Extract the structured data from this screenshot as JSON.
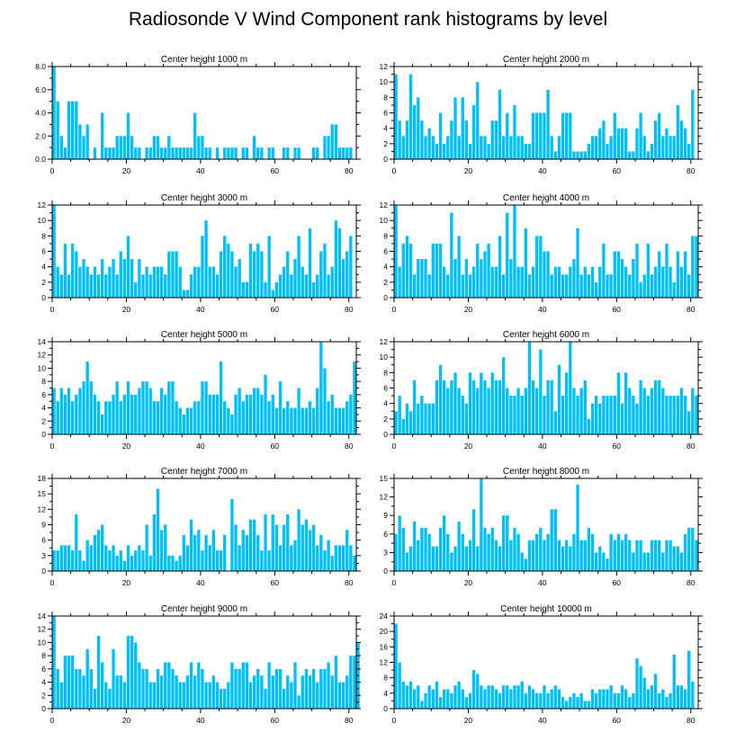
{
  "title": "Radiosonde V Wind Component rank histograms by level",
  "chart_data": [
    {
      "type": "bar",
      "title": "Center height 1000 m",
      "xlim": [
        0,
        82
      ],
      "ylim": [
        0,
        8
      ],
      "xticks": [
        0,
        20,
        40,
        60,
        80
      ],
      "xtick_labels": [
        "0",
        "20",
        "40",
        "60",
        "80"
      ],
      "yticks": [
        0,
        2,
        4,
        6,
        8
      ],
      "ytick_labels": [
        "0.0",
        "2.0",
        "4.0",
        "6.0",
        "8.0"
      ],
      "bar_color": "#00bfff",
      "values": [
        8,
        5,
        2,
        1,
        5,
        5,
        5,
        3,
        2,
        3,
        0,
        1,
        0,
        4,
        1,
        1,
        1,
        2,
        2,
        2,
        4,
        2,
        1,
        1,
        0,
        1,
        1,
        2,
        2,
        1,
        1,
        2,
        1,
        1,
        1,
        1,
        1,
        1,
        4,
        2,
        2,
        1,
        1,
        0,
        1,
        0,
        1,
        1,
        1,
        1,
        0,
        1,
        1,
        0,
        2,
        1,
        1,
        0,
        1,
        1,
        0,
        0,
        1,
        1,
        0,
        1,
        1,
        0,
        0,
        0,
        1,
        1,
        0,
        2,
        2,
        3,
        3,
        1,
        1,
        1,
        1
      ]
    },
    {
      "type": "bar",
      "title": "Center height 2000 m",
      "xlim": [
        0,
        82
      ],
      "ylim": [
        0,
        12
      ],
      "xticks": [
        0,
        20,
        40,
        60,
        80
      ],
      "xtick_labels": [
        "0",
        "20",
        "40",
        "60",
        "80"
      ],
      "yticks": [
        0,
        2,
        4,
        6,
        8,
        10,
        12
      ],
      "ytick_labels": [
        "0",
        "2",
        "4",
        "6",
        "8",
        "10",
        "12"
      ],
      "bar_color": "#00bfff",
      "values": [
        11,
        5,
        3,
        5,
        11,
        7,
        8,
        5,
        3,
        4,
        3,
        2,
        6,
        2,
        3,
        5,
        8,
        3,
        8,
        5,
        2,
        7,
        10,
        3,
        3,
        2,
        5,
        5,
        9,
        3,
        6,
        3,
        7,
        3,
        3,
        2,
        2,
        6,
        6,
        6,
        6,
        9,
        3,
        1,
        3,
        6,
        6,
        6,
        1,
        1,
        1,
        1,
        2,
        3,
        3,
        4,
        5,
        2,
        3,
        6,
        4,
        4,
        4,
        1,
        1,
        4,
        6,
        3,
        1,
        2,
        5,
        6,
        3,
        4,
        3,
        3,
        7,
        5,
        4,
        2,
        9
      ]
    },
    {
      "type": "bar",
      "title": "Center height 3000 m",
      "xlim": [
        0,
        82
      ],
      "ylim": [
        0,
        12
      ],
      "xticks": [
        0,
        20,
        40,
        60,
        80
      ],
      "xtick_labels": [
        "0",
        "20",
        "40",
        "60",
        "80"
      ],
      "yticks": [
        0,
        2,
        4,
        6,
        8,
        10,
        12
      ],
      "ytick_labels": [
        "0",
        "2",
        "4",
        "6",
        "8",
        "10",
        "12"
      ],
      "bar_color": "#00bfff",
      "values": [
        12,
        4,
        3,
        7,
        3,
        7,
        6,
        4,
        5,
        4,
        3,
        4,
        3,
        5,
        3,
        4,
        5,
        3,
        6,
        5,
        8,
        5,
        2,
        5,
        3,
        4,
        3,
        4,
        4,
        4,
        3,
        6,
        6,
        6,
        4,
        1,
        1,
        3,
        4,
        4,
        8,
        10,
        4,
        4,
        3,
        6,
        8,
        7,
        6,
        4,
        5,
        2,
        2,
        7,
        6,
        7,
        6,
        2,
        8,
        1,
        2,
        3,
        4,
        6,
        3,
        5,
        8,
        4,
        3,
        9,
        2,
        3,
        6,
        7,
        3,
        4,
        10,
        9,
        5,
        6,
        8
      ]
    },
    {
      "type": "bar",
      "title": "Center height 4000 m",
      "xlim": [
        0,
        82
      ],
      "ylim": [
        0,
        12
      ],
      "xticks": [
        0,
        20,
        40,
        60,
        80
      ],
      "xtick_labels": [
        "0",
        "20",
        "40",
        "60",
        "80"
      ],
      "yticks": [
        0,
        2,
        4,
        6,
        8,
        10,
        12
      ],
      "ytick_labels": [
        "0",
        "2",
        "4",
        "6",
        "8",
        "10",
        "12"
      ],
      "bar_color": "#00bfff",
      "values": [
        12,
        4,
        7,
        8,
        7,
        3,
        5,
        5,
        5,
        3,
        7,
        7,
        7,
        4,
        3,
        11,
        5,
        8,
        3,
        5,
        3,
        4,
        7,
        5,
        6,
        7,
        4,
        4,
        8,
        3,
        11,
        5,
        12,
        4,
        4,
        9,
        3,
        4,
        8,
        8,
        6,
        6,
        3,
        4,
        4,
        3,
        3,
        4,
        5,
        9,
        3,
        4,
        3,
        4,
        2,
        4,
        7,
        3,
        3,
        6,
        6,
        5,
        4,
        3,
        5,
        7,
        2,
        3,
        7,
        3,
        4,
        6,
        4,
        7,
        4,
        2,
        6,
        4,
        6,
        3,
        8,
        8
      ]
    },
    {
      "type": "bar",
      "title": "Center height 5000 m",
      "xlim": [
        0,
        82
      ],
      "ylim": [
        0,
        14
      ],
      "xticks": [
        0,
        20,
        40,
        60,
        80
      ],
      "xtick_labels": [
        "0",
        "20",
        "40",
        "60",
        "80"
      ],
      "yticks": [
        0,
        2,
        4,
        6,
        8,
        10,
        12,
        14
      ],
      "ytick_labels": [
        "0",
        "2",
        "4",
        "6",
        "8",
        "10",
        "12",
        "14"
      ],
      "bar_color": "#00bfff",
      "values": [
        7,
        5,
        7,
        6,
        7,
        5,
        6,
        7,
        8,
        11,
        8,
        6,
        5,
        3,
        5,
        5,
        6,
        8,
        5,
        6,
        8,
        6,
        6,
        7,
        8,
        8,
        7,
        5,
        5,
        7,
        6,
        8,
        8,
        5,
        4,
        3,
        4,
        4,
        5,
        5,
        8,
        8,
        6,
        6,
        6,
        11,
        5,
        4,
        3,
        6,
        7,
        5,
        6,
        6,
        7,
        7,
        6,
        9,
        5,
        6,
        4,
        8,
        4,
        5,
        4,
        4,
        7,
        4,
        4,
        5,
        4,
        7,
        14,
        10,
        5,
        6,
        4,
        4,
        4,
        5,
        6,
        11
      ]
    },
    {
      "type": "bar",
      "title": "Center height 6000 m",
      "xlim": [
        0,
        82
      ],
      "ylim": [
        0,
        12
      ],
      "xticks": [
        0,
        20,
        40,
        60,
        80
      ],
      "xtick_labels": [
        "0",
        "20",
        "40",
        "60",
        "80"
      ],
      "yticks": [
        0,
        2,
        4,
        6,
        8,
        10,
        12
      ],
      "ytick_labels": [
        "0",
        "2",
        "4",
        "6",
        "8",
        "10",
        "12"
      ],
      "bar_color": "#00bfff",
      "values": [
        3,
        5,
        2,
        4,
        3,
        7,
        4,
        5,
        4,
        4,
        4,
        7,
        9,
        7,
        6,
        7,
        8,
        6,
        5,
        4,
        8,
        7,
        6,
        8,
        7,
        6,
        8,
        7,
        7,
        10,
        6,
        5,
        5,
        6,
        5,
        6,
        12,
        7,
        6,
        11,
        5,
        7,
        7,
        3,
        9,
        5,
        8,
        12,
        6,
        5,
        6,
        7,
        2,
        4,
        5,
        4,
        5,
        5,
        5,
        5,
        8,
        4,
        8,
        6,
        5,
        4,
        7,
        6,
        5,
        6,
        7,
        7,
        6,
        5,
        5,
        5,
        5,
        6,
        5,
        3,
        6,
        5
      ]
    },
    {
      "type": "bar",
      "title": "Center height 7000 m",
      "xlim": [
        0,
        82
      ],
      "ylim": [
        0,
        18
      ],
      "xticks": [
        0,
        20,
        40,
        60,
        80
      ],
      "xtick_labels": [
        "0",
        "20",
        "40",
        "60",
        "80"
      ],
      "yticks": [
        0,
        3,
        6,
        9,
        12,
        15,
        18
      ],
      "ytick_labels": [
        "0",
        "3",
        "6",
        "9",
        "12",
        "15",
        "18"
      ],
      "bar_color": "#00bfff",
      "values": [
        4,
        4,
        5,
        5,
        5,
        4,
        11,
        4,
        2,
        6,
        5,
        7,
        8,
        9,
        5,
        4,
        5,
        3,
        4,
        2,
        5,
        3,
        4,
        5,
        4,
        9,
        3,
        11,
        16,
        8,
        9,
        3,
        3,
        2,
        3,
        7,
        5,
        10,
        7,
        8,
        4,
        7,
        5,
        8,
        4,
        4,
        7,
        0,
        14,
        9,
        5,
        8,
        7,
        10,
        10,
        7,
        4,
        11,
        4,
        11,
        9,
        5,
        9,
        11,
        5,
        6,
        12,
        9,
        10,
        8,
        9,
        5,
        7,
        4,
        6,
        3,
        5,
        5,
        5,
        8,
        5,
        3
      ]
    },
    {
      "type": "bar",
      "title": "Center height 8000 m",
      "xlim": [
        0,
        82
      ],
      "ylim": [
        0,
        15
      ],
      "xticks": [
        0,
        20,
        40,
        60,
        80
      ],
      "xtick_labels": [
        "0",
        "20",
        "40",
        "60",
        "80"
      ],
      "yticks": [
        0,
        3,
        6,
        9,
        12,
        15
      ],
      "ytick_labels": [
        "0",
        "3",
        "6",
        "9",
        "12",
        "15"
      ],
      "bar_color": "#00bfff",
      "values": [
        6,
        9,
        7,
        3,
        4,
        8,
        5,
        7,
        7,
        6,
        4,
        4,
        7,
        9,
        6,
        3,
        4,
        8,
        6,
        4,
        5,
        10,
        4,
        15,
        7,
        6,
        7,
        5,
        4,
        9,
        9,
        5,
        7,
        6,
        3,
        2,
        5,
        5,
        6,
        7,
        5,
        6,
        10,
        10,
        5,
        4,
        5,
        4,
        6,
        14,
        5,
        5,
        7,
        6,
        3,
        4,
        3,
        2,
        6,
        5,
        6,
        5,
        6,
        5,
        3,
        5,
        5,
        3,
        3,
        5,
        5,
        5,
        3,
        5,
        5,
        4,
        4,
        3,
        6,
        7,
        7,
        5
      ]
    },
    {
      "type": "bar",
      "title": "Center height 9000 m",
      "xlim": [
        0,
        82
      ],
      "ylim": [
        0,
        14
      ],
      "xticks": [
        0,
        20,
        40,
        60,
        80
      ],
      "xtick_labels": [
        "0",
        "20",
        "40",
        "60",
        "80"
      ],
      "yticks": [
        0,
        2,
        4,
        6,
        8,
        10,
        12,
        14
      ],
      "ytick_labels": [
        "0",
        "2",
        "4",
        "6",
        "8",
        "10",
        "12",
        "14"
      ],
      "bar_color": "#00bfff",
      "values": [
        14,
        6,
        4,
        8,
        8,
        8,
        6,
        6,
        5,
        9,
        6,
        3,
        11,
        7,
        4,
        3,
        9,
        5,
        5,
        4,
        11,
        11,
        10,
        7,
        6,
        6,
        4,
        4,
        6,
        5,
        7,
        7,
        6,
        5,
        4,
        4,
        5,
        7,
        5,
        7,
        6,
        4,
        4,
        5,
        4,
        3,
        3,
        4,
        7,
        6,
        6,
        7,
        7,
        4,
        5,
        6,
        5,
        3,
        7,
        5,
        6,
        6,
        3,
        5,
        4,
        7,
        2,
        5,
        6,
        5,
        6,
        4,
        6,
        6,
        7,
        5,
        8,
        4,
        4,
        5,
        8,
        8,
        10
      ]
    },
    {
      "type": "bar",
      "title": "Center height 10000 m",
      "xlim": [
        0,
        82
      ],
      "ylim": [
        0,
        24
      ],
      "xticks": [
        0,
        20,
        40,
        60,
        80
      ],
      "xtick_labels": [
        "0",
        "20",
        "40",
        "60",
        "80"
      ],
      "yticks": [
        0,
        4,
        8,
        12,
        16,
        20,
        24
      ],
      "ytick_labels": [
        "0",
        "4",
        "8",
        "12",
        "16",
        "20",
        "24"
      ],
      "bar_color": "#00bfff",
      "values": [
        22,
        12,
        7,
        6,
        7,
        5,
        6,
        2,
        4,
        6,
        5,
        7,
        3,
        5,
        5,
        4,
        6,
        7,
        5,
        3,
        4,
        10,
        9,
        6,
        5,
        6,
        6,
        5,
        4,
        6,
        6,
        5,
        6,
        6,
        7,
        4,
        6,
        5,
        4,
        4,
        6,
        4,
        5,
        6,
        5,
        3,
        2,
        3,
        4,
        3,
        4,
        2,
        2,
        5,
        4,
        5,
        5,
        5,
        6,
        4,
        4,
        6,
        5,
        3,
        4,
        13,
        11,
        8,
        5,
        6,
        9,
        4,
        5,
        3,
        4,
        14,
        6,
        6,
        5,
        15,
        7
      ]
    }
  ]
}
